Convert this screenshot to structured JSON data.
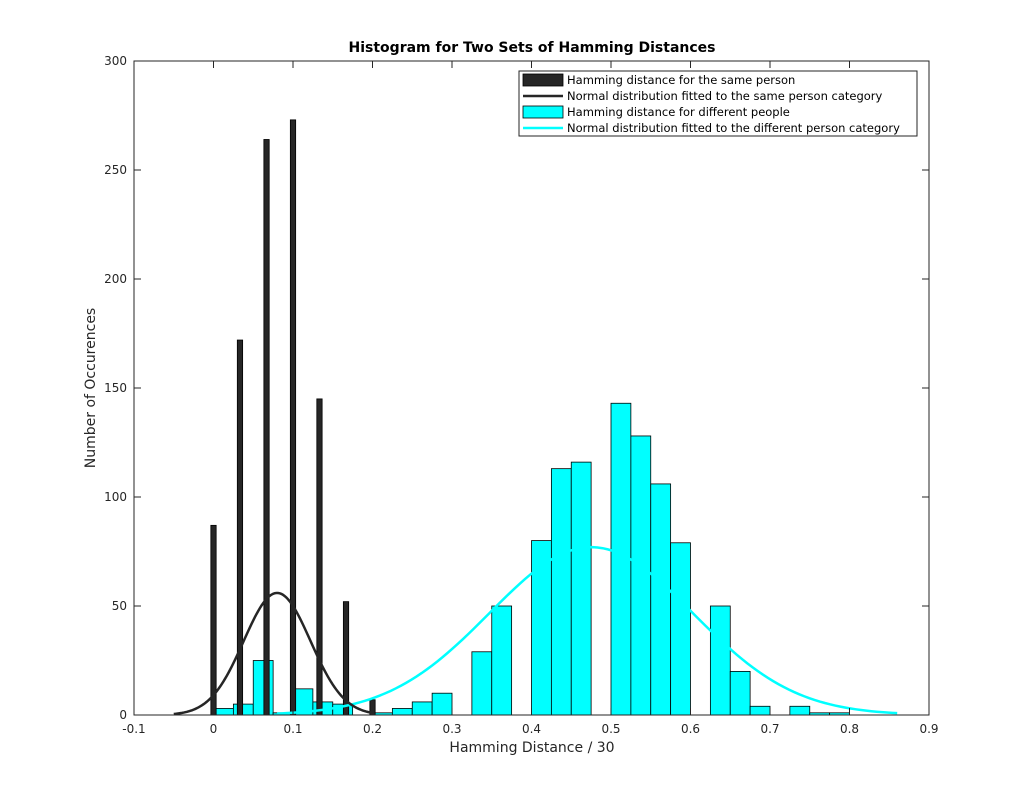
{
  "chart_data": {
    "type": "bar",
    "title": "Histogram for Two Sets of Hamming Distances",
    "xlabel": "Hamming Distance / 30",
    "ylabel": "Number of Occurences",
    "xlim": [
      -0.1,
      0.9
    ],
    "ylim": [
      0,
      300
    ],
    "xticks": [
      -0.1,
      0,
      0.1,
      0.2,
      0.3,
      0.4,
      0.5,
      0.6,
      0.7,
      0.8,
      0.9
    ],
    "xtick_labels": [
      "-0.1",
      "0",
      "0.1",
      "0.2",
      "0.3",
      "0.4",
      "0.5",
      "0.6",
      "0.7",
      "0.8",
      "0.9"
    ],
    "yticks": [
      0,
      50,
      100,
      150,
      200,
      250,
      300
    ],
    "ytick_labels": [
      "0",
      "50",
      "100",
      "150",
      "200",
      "250",
      "300"
    ],
    "grid": false,
    "legend_position": "top-right",
    "series": [
      {
        "name": "Hamming distance for the same person",
        "kind": "histogram",
        "color": "#262626",
        "bin_width": 0.0067,
        "x": [
          0,
          0.0333,
          0.0667,
          0.1,
          0.1333,
          0.1667,
          0.2
        ],
        "values": [
          87,
          172,
          264,
          273,
          145,
          52,
          7
        ]
      },
      {
        "name": "Normal distribution fitted to the same person category",
        "kind": "curve",
        "color": "#262626",
        "mean": 0.08,
        "sd": 0.042,
        "peak": 56,
        "x_range": [
          -0.05,
          0.2
        ]
      },
      {
        "name": "Hamming distance for different people",
        "kind": "histogram",
        "color": "#00ffff",
        "bin_width": 0.025,
        "x": [
          0.0125,
          0.0375,
          0.0625,
          0.0875,
          0.1125,
          0.1375,
          0.1625,
          0.1875,
          0.2125,
          0.2375,
          0.2625,
          0.2875,
          0.3125,
          0.3375,
          0.3625,
          0.3875,
          0.4125,
          0.4375,
          0.4625,
          0.4875,
          0.5125,
          0.5375,
          0.5625,
          0.5875,
          0.6125,
          0.6375,
          0.6625,
          0.6875,
          0.7125,
          0.7375,
          0.7625,
          0.7875,
          0.8125
        ],
        "values": [
          3,
          5,
          25,
          1,
          12,
          6,
          5,
          0,
          1,
          3,
          6,
          10,
          0,
          29,
          50,
          0,
          80,
          113,
          116,
          0,
          143,
          128,
          106,
          79,
          0,
          50,
          20,
          4,
          0,
          4,
          1,
          1,
          0
        ]
      },
      {
        "name": "Normal distribution fitted to the different person category",
        "kind": "curve",
        "color": "#00ffff",
        "mean": 0.475,
        "sd": 0.128,
        "peak": 77,
        "x_range": [
          0.08,
          0.86
        ]
      }
    ]
  }
}
